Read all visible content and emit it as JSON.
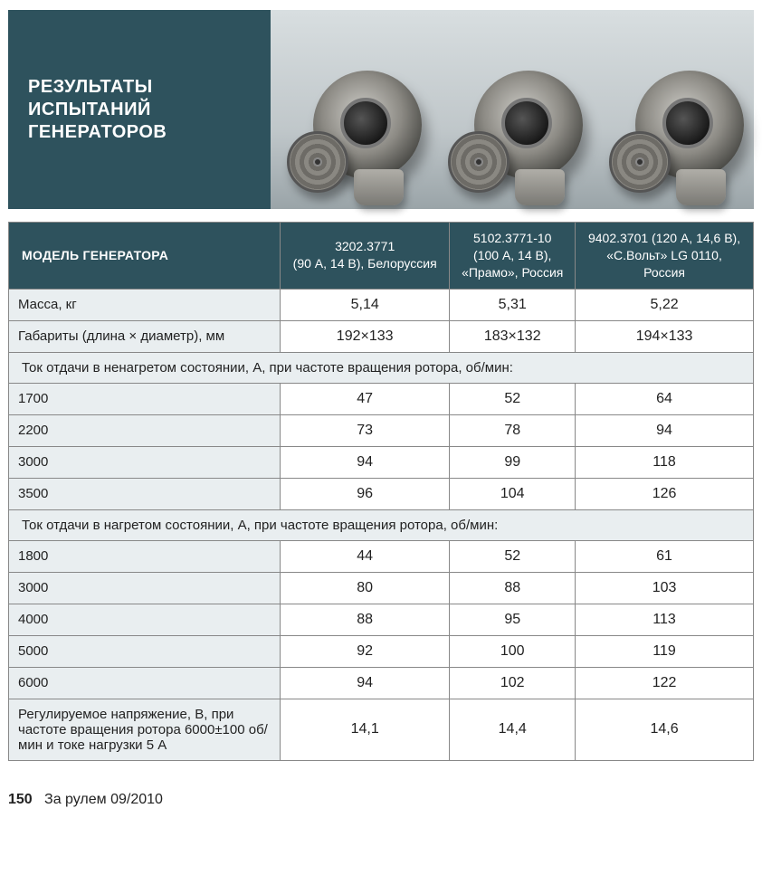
{
  "title_lines": [
    "РЕЗУЛЬТАТЫ",
    "ИСПЫТАНИЙ",
    "ГЕНЕРАТОРОВ"
  ],
  "colors": {
    "header_bg": "#2e525d",
    "header_text": "#ffffff",
    "row_label_bg": "#e9eef0",
    "border": "#888888",
    "page_bg": "#ffffff",
    "photo_bg_top": "#d8dee0",
    "photo_bg_bottom": "#9aa4a8"
  },
  "typography": {
    "title_fontsize_pt": 15,
    "header_fontsize_pt": 10.5,
    "cell_fontsize_pt": 12,
    "footer_fontsize_pt": 12
  },
  "header": {
    "label": "МОДЕЛЬ ГЕНЕРАТОРА",
    "models": [
      "3202.3771\n(90 А, 14 В), Белоруссия",
      "5102.3771-10\n(100 А, 14 В),\n«Прамо», Россия",
      "9402.3701 (120 А, 14,6 В),\n«С.Вольт» LG 0110,\nРоссия"
    ]
  },
  "rows": [
    {
      "type": "data",
      "label": "Масса, кг",
      "values": [
        "5,14",
        "5,31",
        "5,22"
      ]
    },
    {
      "type": "data",
      "label": "Габариты (длина × диаметр), мм",
      "values": [
        "192×133",
        "183×132",
        "194×133"
      ]
    },
    {
      "type": "section",
      "label": "Ток отдачи в ненагретом состоянии, А, при частоте вращения ротора, об/мин:"
    },
    {
      "type": "data",
      "label": "1700",
      "values": [
        "47",
        "52",
        "64"
      ]
    },
    {
      "type": "data",
      "label": "2200",
      "values": [
        "73",
        "78",
        "94"
      ]
    },
    {
      "type": "data",
      "label": "3000",
      "values": [
        "94",
        "99",
        "118"
      ]
    },
    {
      "type": "data",
      "label": "3500",
      "values": [
        "96",
        "104",
        "126"
      ]
    },
    {
      "type": "section",
      "label": "Ток отдачи в нагретом состоянии, А, при частоте вращения ротора, об/мин:"
    },
    {
      "type": "data",
      "label": "1800",
      "values": [
        "44",
        "52",
        "61"
      ]
    },
    {
      "type": "data",
      "label": "3000",
      "values": [
        "80",
        "88",
        "103"
      ]
    },
    {
      "type": "data",
      "label": "4000",
      "values": [
        "88",
        "95",
        "113"
      ]
    },
    {
      "type": "data",
      "label": "5000",
      "values": [
        "92",
        "100",
        "119"
      ]
    },
    {
      "type": "data",
      "label": "6000",
      "values": [
        "94",
        "102",
        "122"
      ]
    },
    {
      "type": "data",
      "label": "Регулируемое напряжение, В, при частоте вращения ротора 6000±100 об/мин и токе нагрузки 5 А",
      "values": [
        "14,1",
        "14,4",
        "14,6"
      ]
    }
  ],
  "footer": {
    "page": "150",
    "source": "За рулем 09/2010"
  },
  "image_count": 3
}
